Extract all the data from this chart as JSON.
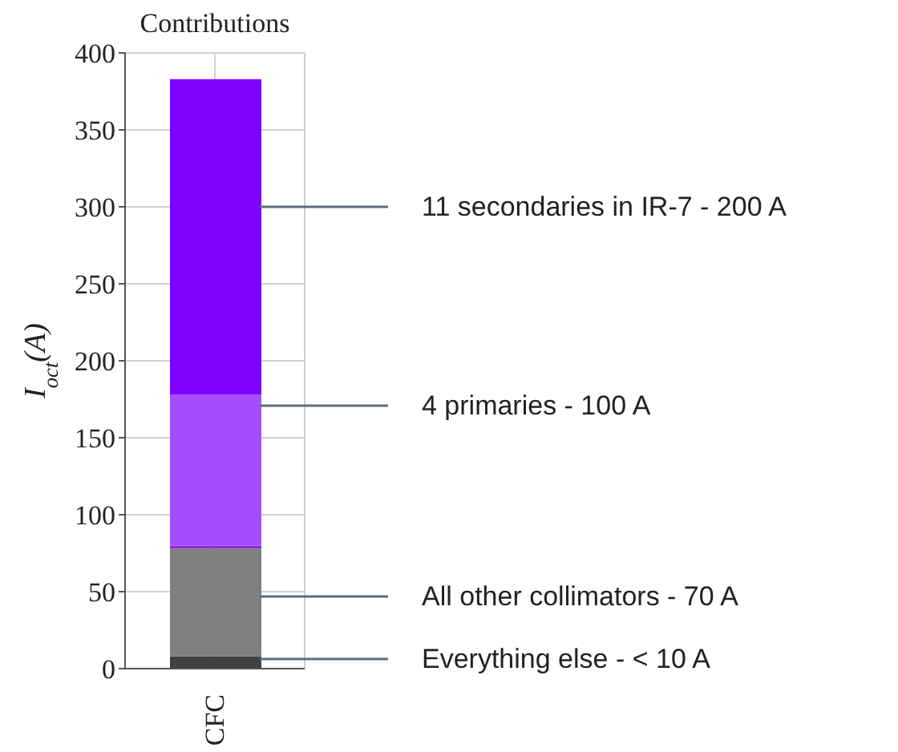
{
  "chart_data": {
    "type": "bar",
    "title": "Contributions",
    "ylabel": "I$_{oct}$(A)",
    "categories": [
      "CFC"
    ],
    "stacked": true,
    "series": [
      {
        "color": "#404040",
        "values": [
          8
        ]
      },
      {
        "color": "#7f7f7f",
        "values": [
          70
        ]
      },
      {
        "color": "#8b2be2",
        "values": [
          2
        ]
      },
      {
        "color": "#a64dff",
        "values": [
          98
        ]
      },
      {
        "color": "#7f00ff",
        "values": [
          205
        ]
      }
    ],
    "ylim": [
      0,
      400
    ],
    "yticks": [
      0,
      50,
      100,
      150,
      200,
      250,
      300,
      350,
      400
    ],
    "grid": true,
    "annotations": [
      "11 secondaries in IR-7 - 200 A",
      "4 primaries - 100 A",
      "All other collimators - 70 A",
      "Everything else - < 10 A"
    ]
  }
}
